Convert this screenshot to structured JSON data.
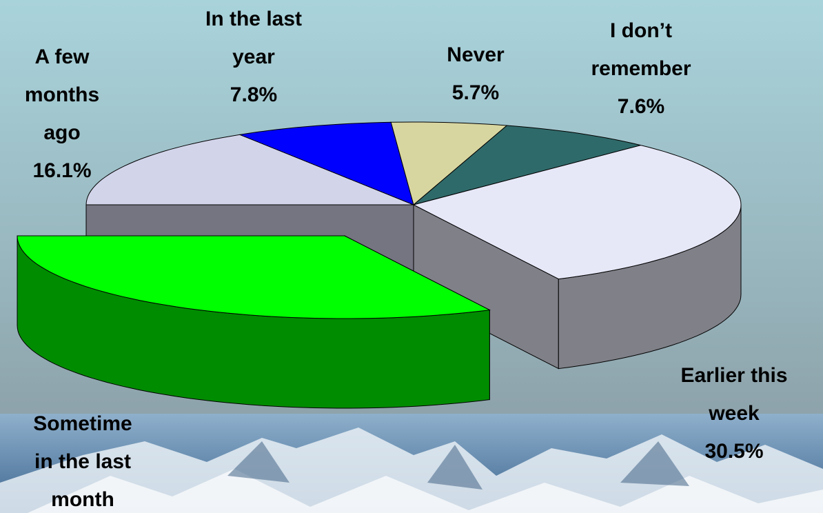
{
  "chart_data": {
    "type": "pie3d",
    "categories": [
      "A few months ago",
      "In the last year",
      "Never",
      "I don’t remember",
      "Earlier this week",
      "Sometime in the last month"
    ],
    "values": [
      16.1,
      7.8,
      5.7,
      7.6,
      30.5,
      32.3
    ],
    "value_labels": [
      "16.1%",
      "7.8%",
      "5.7%",
      "7.6%",
      "30.5%",
      null
    ],
    "colors": [
      "#d2d4ea",
      "#0000ff",
      "#d8d6a0",
      "#2f6a6a",
      "#e6e8f8",
      "#00ff00"
    ],
    "explode": [
      false,
      false,
      false,
      false,
      false,
      true
    ]
  }
}
